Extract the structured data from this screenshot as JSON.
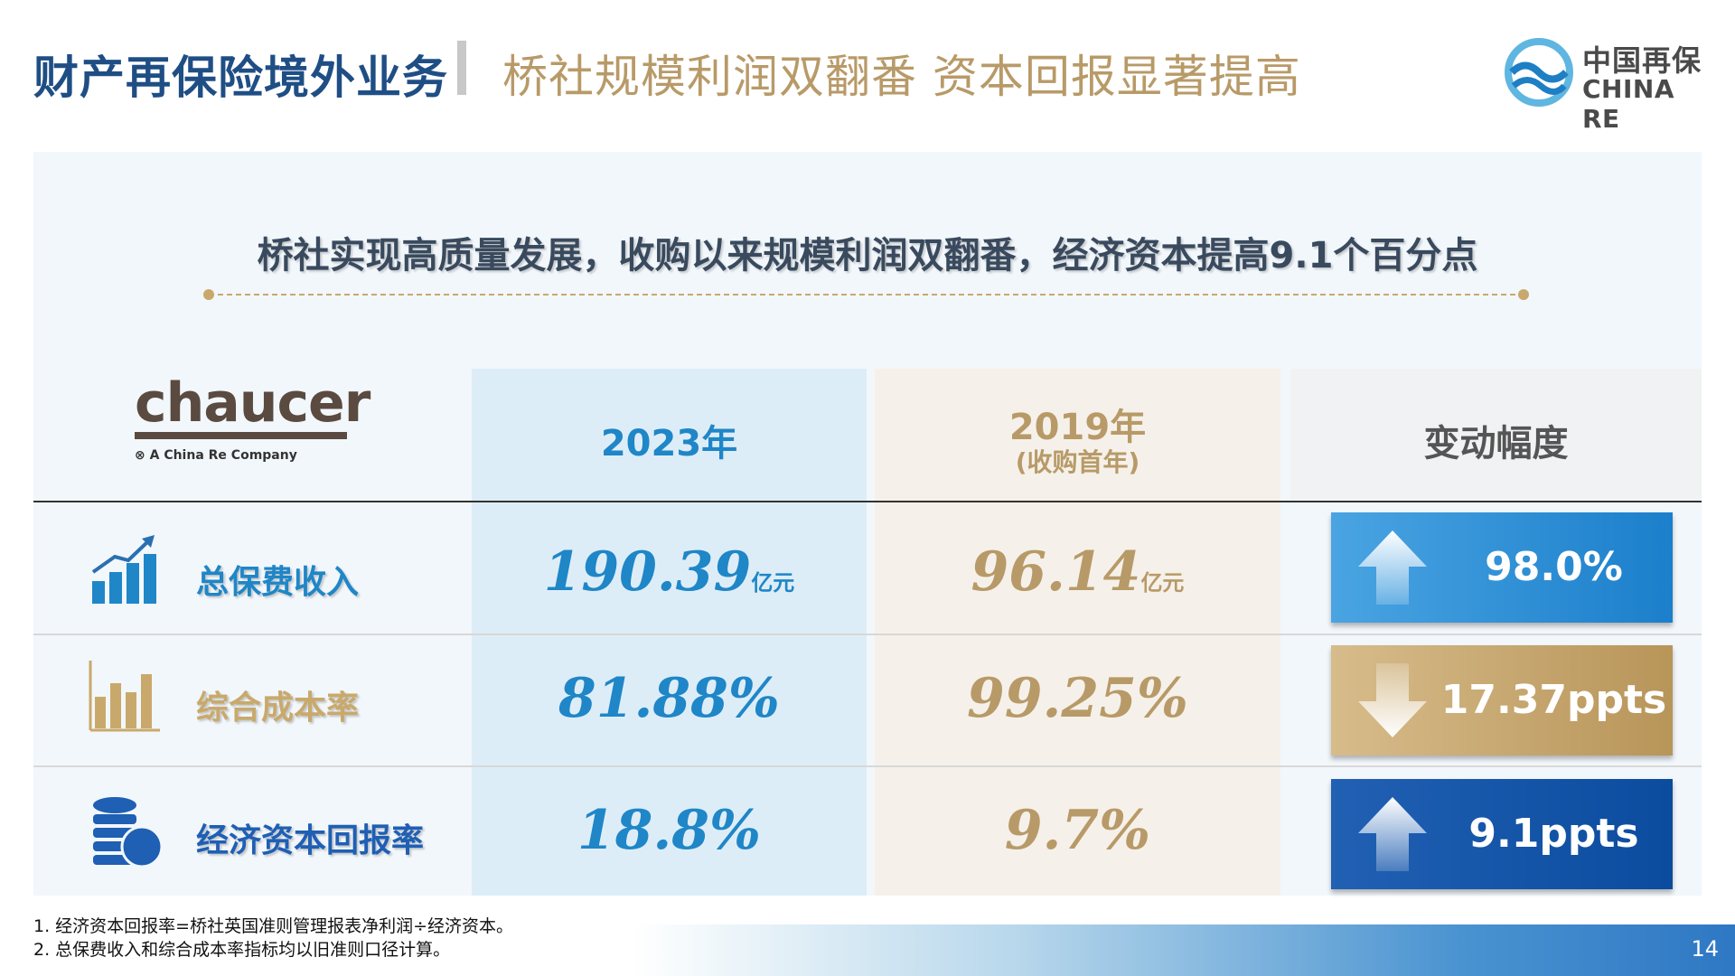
{
  "header": {
    "title": "财产再保险境外业务",
    "subtitle": "桥社规模利润双翻番  资本回报显著提高",
    "logo_cn": "中国再保",
    "logo_en": "CHINA RE"
  },
  "headline": "桥社实现高质量发展，收购以来规模利润双翻番，经济资本提高9.1个百分点",
  "chaucer": {
    "name": "chaucer",
    "tagline": "A China Re Company"
  },
  "columns": {
    "year_2023": "2023年",
    "year_2019": "2019年",
    "year_2019_note": "(收购首年)",
    "change": "变动幅度"
  },
  "rows": [
    {
      "label": "总保费收入",
      "icon": "bar-chart-growth-icon",
      "v2023": "190.39",
      "v2023_unit": "亿元",
      "v2019": "96.14",
      "v2019_unit": "亿元",
      "change": "98.0%",
      "direction": "up"
    },
    {
      "label": "综合成本率",
      "icon": "bar-chart-gold-icon",
      "v2023": "81.88%",
      "v2019": "99.25%",
      "change": "17.37ppts",
      "direction": "down"
    },
    {
      "label": "经济资本回报率",
      "icon": "coins-stack-icon",
      "v2023": "18.8%",
      "v2019": "9.7%",
      "change": "9.1ppts",
      "direction": "up"
    }
  ],
  "notes": [
    "1.  经济资本回报率=桥社英国准则管理报表净利润÷经济资本。",
    "2.  总保费收入和综合成本率指标均以旧准则口径计算。"
  ],
  "page_number": "14",
  "colors": {
    "blue": "#1f86c7",
    "gold": "#b89a68",
    "navy": "#1f4e85"
  }
}
